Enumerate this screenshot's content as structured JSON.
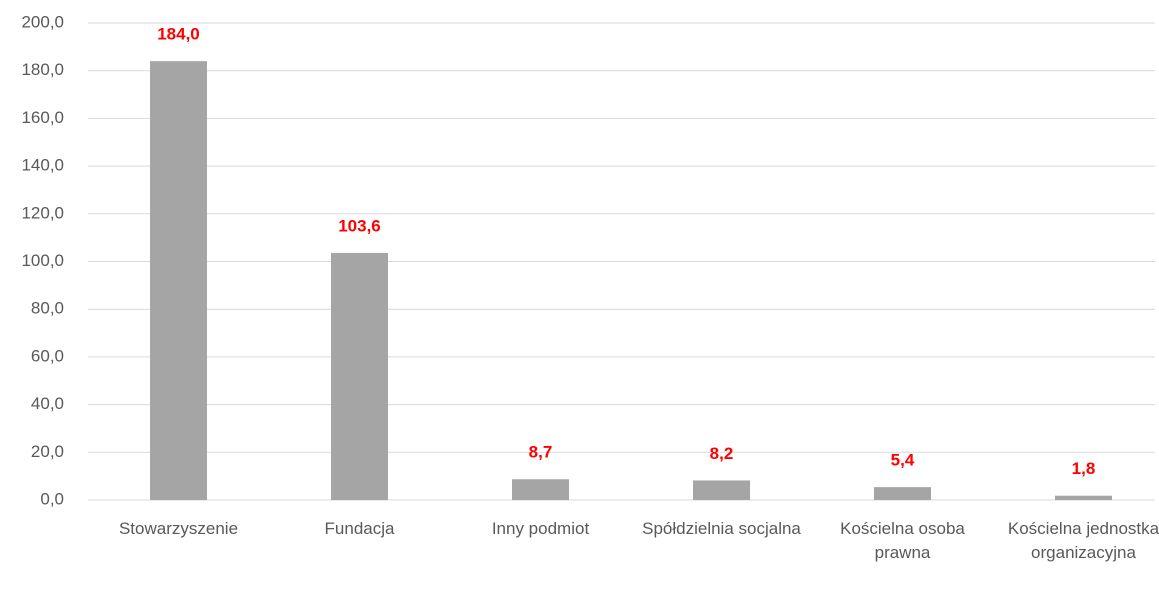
{
  "chart_data": {
    "type": "bar",
    "categories": [
      "Stowarzyszenie",
      "Fundacja",
      "Inny podmiot",
      "Spółdzielnia socjalna",
      "Kościelna osoba prawna",
      "Kościelna jednostka organizacyjna"
    ],
    "values": [
      184.0,
      103.6,
      8.7,
      8.2,
      5.4,
      1.8
    ],
    "value_labels": [
      "184,0",
      "103,6",
      "8,7",
      "8,2",
      "5,4",
      "1,8"
    ],
    "color": "#a5a5a5",
    "label_color": "#ff0000",
    "ylim": [
      0,
      200
    ],
    "yticks": [
      {
        "value": 0,
        "label": "0,0"
      },
      {
        "value": 20,
        "label": "20,0"
      },
      {
        "value": 40,
        "label": "40,0"
      },
      {
        "value": 60,
        "label": "60,0"
      },
      {
        "value": 80,
        "label": "80,0"
      },
      {
        "value": 100,
        "label": "100,0"
      },
      {
        "value": 120,
        "label": "120,0"
      },
      {
        "value": 140,
        "label": "140,0"
      },
      {
        "value": 160,
        "label": "160,0"
      },
      {
        "value": 180,
        "label": "180,0"
      },
      {
        "value": 200,
        "label": "200,0"
      }
    ],
    "grid": true
  }
}
